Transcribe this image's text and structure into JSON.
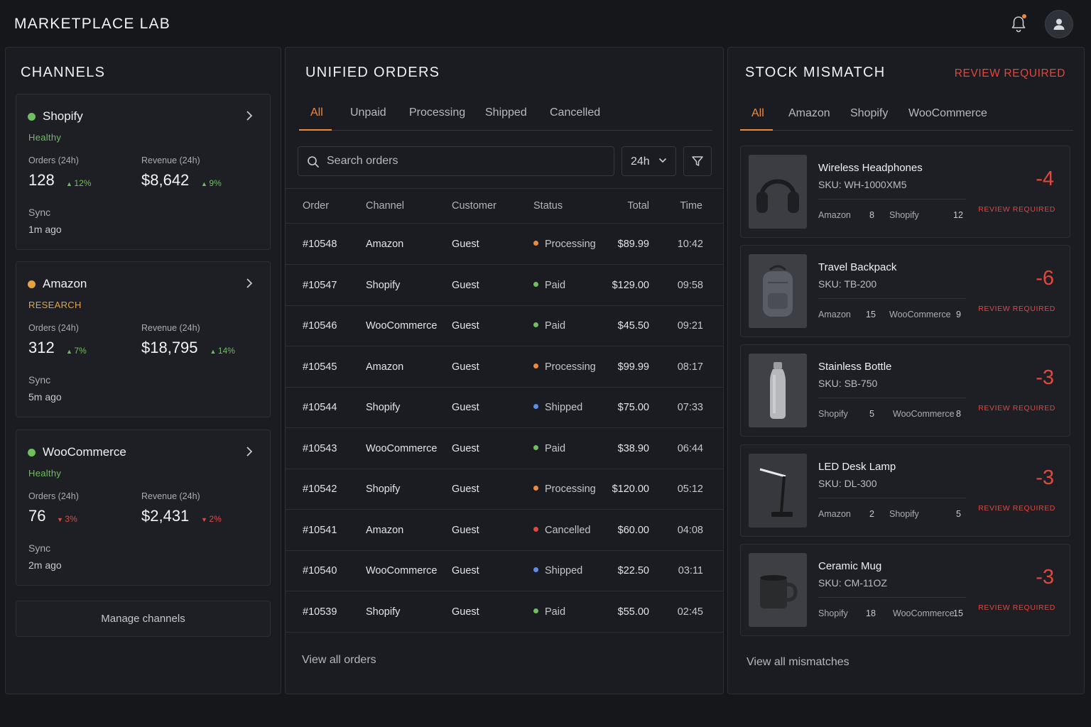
{
  "app": {
    "title": "MARKETPLACE LAB"
  },
  "colors": {
    "accent": "#f08a3a",
    "healthy": "#6fbf5e",
    "research": "#e8a43c",
    "danger": "#e2473e",
    "shipped": "#5b8def"
  },
  "channels": {
    "title": "CHANNELS",
    "cards": [
      {
        "name": "Shopify",
        "status": "Healthy",
        "dot_color": "#6fbf5e",
        "status_color": "#6fbf5e",
        "orders_label": "Orders (24h)",
        "orders": "128",
        "orders_delta": "12%",
        "orders_dir": "up",
        "revenue_label": "Revenue (24h)",
        "revenue": "$8,642",
        "revenue_delta": "9%",
        "revenue_dir": "up",
        "sync_label": "Sync",
        "sync_value": "1m ago"
      },
      {
        "name": "Amazon",
        "status": "RESEARCH",
        "dot_color": "#e8a43c",
        "status_color": "#e8a43c",
        "orders_label": "Orders (24h)",
        "orders": "312",
        "orders_delta": "7%",
        "orders_dir": "up",
        "revenue_label": "Revenue (24h)",
        "revenue": "$18,795",
        "revenue_delta": "14%",
        "revenue_dir": "up",
        "sync_label": "Sync",
        "sync_value": "5m ago"
      },
      {
        "name": "WooCommerce",
        "status": "Healthy",
        "dot_color": "#6fbf5e",
        "status_color": "#6fbf5e",
        "orders_label": "Orders (24h)",
        "orders": "76",
        "orders_delta": "3%",
        "orders_dir": "down",
        "revenue_label": "Revenue (24h)",
        "revenue": "$2,431",
        "revenue_delta": "2%",
        "revenue_dir": "down",
        "sync_label": "Sync",
        "sync_value": "2m ago"
      }
    ],
    "manage_label": "Manage channels"
  },
  "orders": {
    "title": "UNIFIED ORDERS",
    "tabs": [
      "All",
      "Unpaid",
      "Processing",
      "Shipped",
      "Cancelled"
    ],
    "active_tab": "All",
    "search_placeholder": "Search orders",
    "range_value": "24h",
    "columns": [
      "Order",
      "Channel",
      "Customer",
      "Status",
      "Total",
      "Time"
    ],
    "rows": [
      {
        "order": "#10548",
        "channel": "Amazon",
        "customer": "Guest",
        "status": "Processing",
        "status_color": "#f08a3a",
        "total": "$89.99",
        "time": "10:42"
      },
      {
        "order": "#10547",
        "channel": "Shopify",
        "customer": "Guest",
        "status": "Paid",
        "status_color": "#6fbf5e",
        "total": "$129.00",
        "time": "09:58"
      },
      {
        "order": "#10546",
        "channel": "WooCommerce",
        "customer": "Guest",
        "status": "Paid",
        "status_color": "#6fbf5e",
        "total": "$45.50",
        "time": "09:21"
      },
      {
        "order": "#10545",
        "channel": "Amazon",
        "customer": "Guest",
        "status": "Processing",
        "status_color": "#f08a3a",
        "total": "$99.99",
        "time": "08:17"
      },
      {
        "order": "#10544",
        "channel": "Shopify",
        "customer": "Guest",
        "status": "Shipped",
        "status_color": "#5b8def",
        "total": "$75.00",
        "time": "07:33"
      },
      {
        "order": "#10543",
        "channel": "WooCommerce",
        "customer": "Guest",
        "status": "Paid",
        "status_color": "#6fbf5e",
        "total": "$38.90",
        "time": "06:44"
      },
      {
        "order": "#10542",
        "channel": "Shopify",
        "customer": "Guest",
        "status": "Processing",
        "status_color": "#f08a3a",
        "total": "$120.00",
        "time": "05:12"
      },
      {
        "order": "#10541",
        "channel": "Amazon",
        "customer": "Guest",
        "status": "Cancelled",
        "status_color": "#e2473e",
        "total": "$60.00",
        "time": "04:08"
      },
      {
        "order": "#10540",
        "channel": "WooCommerce",
        "customer": "Guest",
        "status": "Shipped",
        "status_color": "#5b8def",
        "total": "$22.50",
        "time": "03:11"
      },
      {
        "order": "#10539",
        "channel": "Shopify",
        "customer": "Guest",
        "status": "Paid",
        "status_color": "#6fbf5e",
        "total": "$55.00",
        "time": "02:45"
      }
    ],
    "view_all": "View all orders"
  },
  "stock": {
    "title": "STOCK MISMATCH",
    "badge": "REVIEW REQUIRED",
    "tabs": [
      "All",
      "Amazon",
      "Shopify",
      "WooCommerce"
    ],
    "active_tab": "All",
    "items": [
      {
        "name": "Wireless Headphones",
        "sku": "SKU: WH-1000XM5",
        "a_label": "Amazon",
        "a_count": "8",
        "b_label": "Shopify",
        "b_count": "12",
        "delta": "-4",
        "review": "REVIEW REQUIRED",
        "icon": "headphones-image"
      },
      {
        "name": "Travel Backpack",
        "sku": "SKU: TB-200",
        "a_label": "Amazon",
        "a_count": "15",
        "b_label": "WooCommerce",
        "b_count": "9",
        "delta": "-6",
        "review": "REVIEW REQUIRED",
        "icon": "backpack-image"
      },
      {
        "name": "Stainless Bottle",
        "sku": "SKU: SB-750",
        "a_label": "Shopify",
        "a_count": "5",
        "b_label": "WooCommerce",
        "b_count": "8",
        "delta": "-3",
        "review": "REVIEW REQUIRED",
        "icon": "bottle-image"
      },
      {
        "name": "LED Desk Lamp",
        "sku": "SKU: DL-300",
        "a_label": "Amazon",
        "a_count": "2",
        "b_label": "Shopify",
        "b_count": "5",
        "delta": "-3",
        "review": "REVIEW REQUIRED",
        "icon": "lamp-image"
      },
      {
        "name": "Ceramic Mug",
        "sku": "SKU: CM-11OZ",
        "a_label": "Shopify",
        "a_count": "18",
        "b_label": "WooCommerce",
        "b_count": "15",
        "delta": "-3",
        "review": "REVIEW REQUIRED",
        "icon": "mug-image"
      }
    ],
    "view_all": "View all mismatches"
  }
}
